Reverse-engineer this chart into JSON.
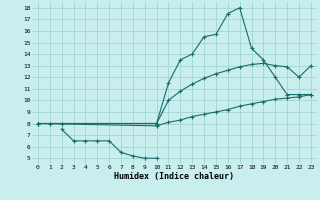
{
  "xlabel": "Humidex (Indice chaleur)",
  "bg_color": "#c8eeee",
  "grid_color": "#a8d8d8",
  "line_color": "#1a6b6b",
  "line1_x": [
    0,
    1,
    2,
    10,
    11,
    12,
    13,
    14,
    15,
    16,
    17,
    18,
    19,
    20,
    21,
    22,
    23
  ],
  "line1_y": [
    8,
    8,
    8,
    8,
    11.5,
    13.5,
    14.0,
    15.5,
    15.7,
    17.5,
    18.0,
    14.5,
    13.5,
    12.0,
    10.5,
    10.5,
    10.5
  ],
  "line2_x": [
    0,
    10,
    11,
    12,
    13,
    14,
    15,
    16,
    17,
    18,
    19,
    20,
    21,
    22,
    23
  ],
  "line2_y": [
    8,
    8.0,
    10.0,
    10.8,
    11.4,
    11.9,
    12.3,
    12.6,
    12.9,
    13.1,
    13.2,
    13.0,
    12.9,
    12.0,
    13.0
  ],
  "line3_x": [
    0,
    10,
    11,
    12,
    13,
    14,
    15,
    16,
    17,
    18,
    19,
    20,
    21,
    22,
    23
  ],
  "line3_y": [
    8,
    7.8,
    8.1,
    8.3,
    8.6,
    8.8,
    9.0,
    9.2,
    9.5,
    9.7,
    9.9,
    10.1,
    10.2,
    10.3,
    10.5
  ],
  "line4_x": [
    2,
    3,
    4,
    5,
    6,
    7,
    8,
    9,
    10
  ],
  "line4_y": [
    7.5,
    6.5,
    6.5,
    6.5,
    6.5,
    5.5,
    5.2,
    5.0,
    5.0
  ],
  "ylim": [
    4.5,
    18.5
  ],
  "xlim": [
    -0.5,
    23.5
  ],
  "yticks": [
    5,
    6,
    7,
    8,
    9,
    10,
    11,
    12,
    13,
    14,
    15,
    16,
    17,
    18
  ],
  "xticks": [
    0,
    1,
    2,
    3,
    4,
    5,
    6,
    7,
    8,
    9,
    10,
    11,
    12,
    13,
    14,
    15,
    16,
    17,
    18,
    19,
    20,
    21,
    22,
    23
  ]
}
